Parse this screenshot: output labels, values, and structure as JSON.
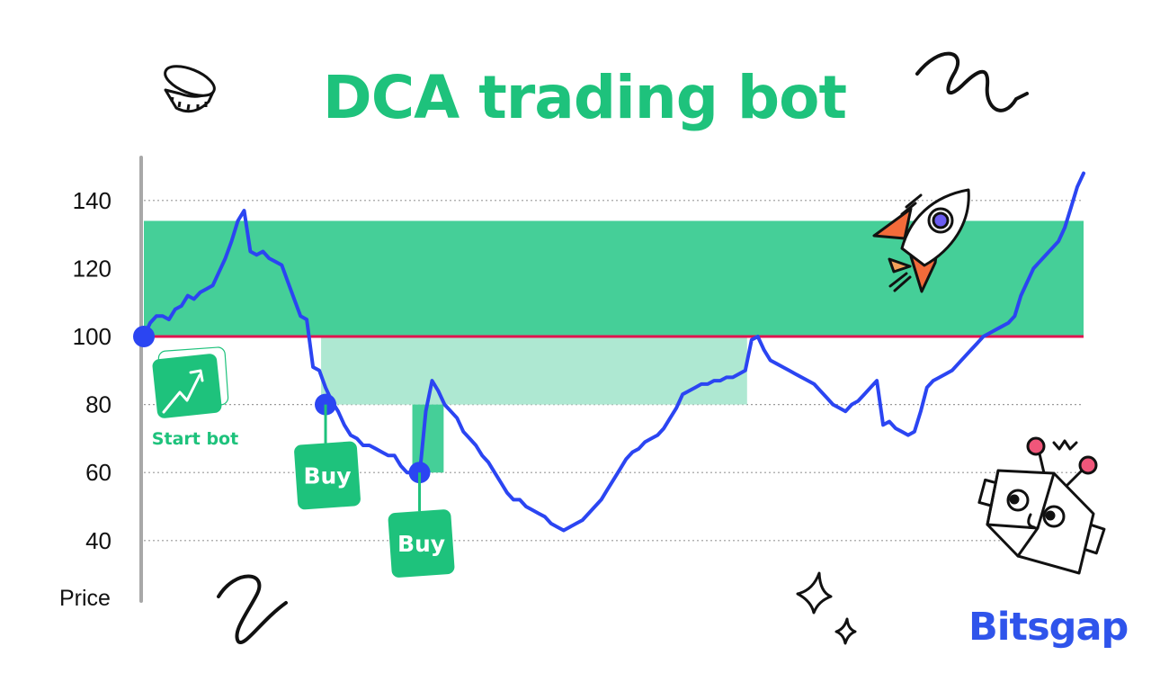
{
  "title": "DCA trading bot",
  "brand": "Bitsgap",
  "colors": {
    "title": "#1ec27c",
    "price_line": "#2b45f2",
    "band": "#45cf98",
    "deal_zone": "#aee8d2",
    "start_line": "#e0134f",
    "marker": "#2b45f2",
    "buy_label": "#1ec27c",
    "brand": "#2f54eb"
  },
  "icons": [
    "coin-icon",
    "rocket-icon",
    "robot-icon",
    "sparkle-icon",
    "squiggle-icon",
    "start-bot-icon"
  ],
  "chart_data": {
    "type": "line",
    "ylabel": "Price",
    "ylim": [
      26,
      152
    ],
    "yticks": [
      40,
      60,
      80,
      100,
      120,
      140
    ],
    "grid": true,
    "x": [
      0,
      1,
      2,
      3,
      4,
      5,
      6,
      7,
      8,
      9,
      10,
      11,
      12,
      13,
      14,
      15,
      16,
      17,
      18,
      19,
      20,
      21,
      22,
      23,
      24,
      25,
      26,
      27,
      28,
      29,
      30,
      31,
      32,
      33,
      34,
      35,
      36,
      37,
      38,
      39,
      40,
      41,
      42,
      43,
      44,
      45,
      46,
      47,
      48,
      49,
      50,
      51,
      52,
      53,
      54,
      55,
      56,
      57,
      58,
      59,
      60,
      61,
      62,
      63,
      64,
      65,
      66,
      67,
      68,
      69,
      70,
      71,
      72,
      73,
      74,
      75,
      76,
      77,
      78,
      79,
      80,
      81,
      82,
      83,
      84,
      85,
      86,
      87,
      88,
      89,
      90,
      91,
      92,
      93,
      94,
      95,
      96,
      97,
      98,
      99,
      100,
      101,
      102,
      103,
      104,
      105,
      106,
      107,
      108,
      109,
      110,
      111,
      112,
      113,
      114,
      115,
      116,
      117,
      118,
      119,
      120,
      121,
      122,
      123,
      124,
      125,
      126,
      127,
      128,
      129,
      130,
      131,
      132,
      133,
      134,
      135,
      136,
      137,
      138,
      139,
      140,
      141,
      142,
      143,
      144,
      145,
      146,
      147,
      148,
      149,
      150
    ],
    "series": [
      {
        "values": [
          100,
          104,
          106,
          106,
          105,
          108,
          109,
          112,
          111,
          113,
          114,
          115,
          119,
          123,
          128,
          134,
          137,
          125,
          124,
          125,
          123,
          122,
          121,
          116,
          111,
          106,
          105,
          91,
          90,
          85,
          81,
          78,
          74,
          71,
          70,
          68,
          68,
          67,
          66,
          65,
          65,
          62,
          60,
          60,
          59,
          78,
          87,
          84,
          80,
          78,
          76,
          72,
          70,
          68,
          65,
          63,
          60,
          57,
          54,
          52,
          52,
          50,
          49,
          48,
          47,
          45,
          44,
          43,
          44,
          45,
          46,
          48,
          50,
          52,
          55,
          58,
          61,
          64,
          66,
          67,
          69,
          70,
          71,
          73,
          76,
          79,
          83,
          84,
          85,
          86,
          86,
          87,
          87,
          88,
          88,
          89,
          90,
          99,
          100,
          96,
          93,
          92,
          91,
          90,
          89,
          88,
          87,
          86,
          84,
          82,
          80,
          79,
          78,
          80,
          81,
          83,
          85,
          87,
          74,
          75,
          73,
          72,
          71,
          72,
          78,
          85,
          87,
          88,
          89,
          90,
          92,
          94,
          96,
          98,
          100,
          101,
          102,
          103,
          104,
          106,
          112,
          116,
          120,
          122,
          124,
          126,
          128,
          132,
          138,
          144,
          148
        ]
      }
    ],
    "start_price": 100,
    "take_profit_band": [
      100,
      134
    ],
    "deal_zone": {
      "from": 28,
      "to": 96,
      "low": 80,
      "high": 100
    },
    "small_fill": {
      "from": 44,
      "to": 49,
      "low": 60,
      "high": 80
    },
    "markers": [
      {
        "x": 0,
        "y": 100,
        "label": "Start bot"
      },
      {
        "x": 29,
        "y": 80,
        "label": "Buy"
      },
      {
        "x": 44,
        "y": 60,
        "label": "Buy"
      }
    ]
  }
}
